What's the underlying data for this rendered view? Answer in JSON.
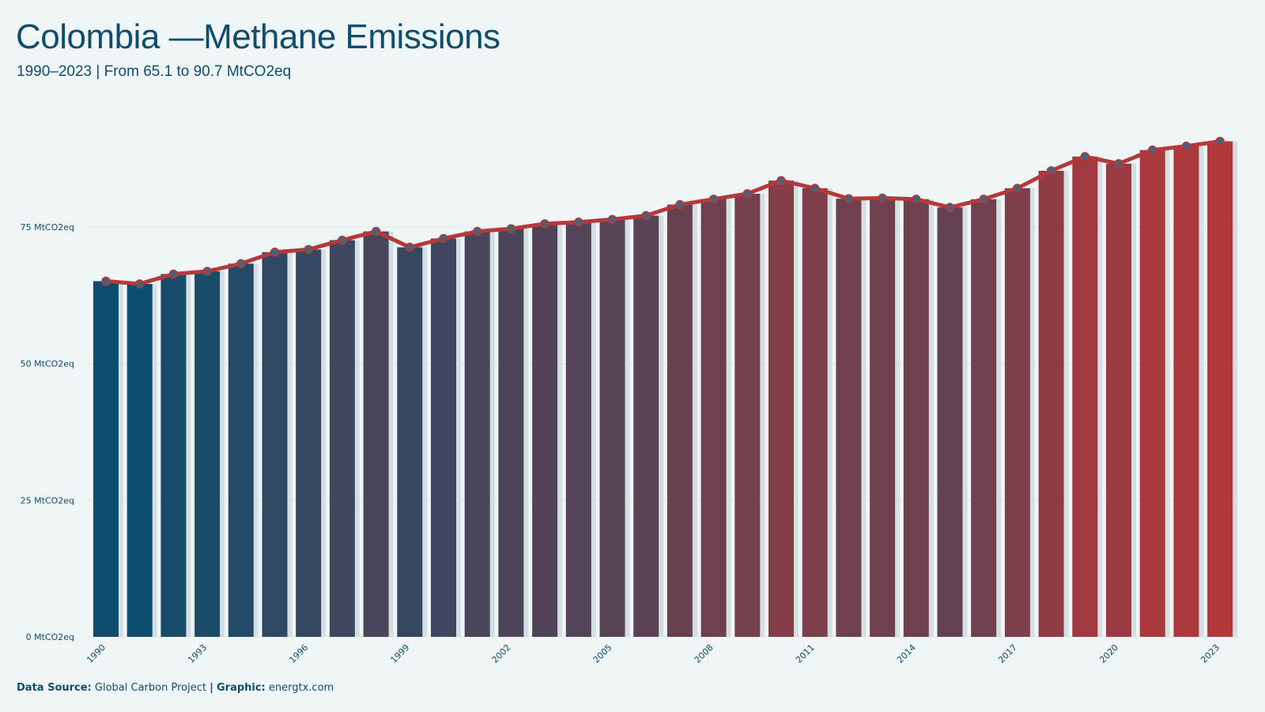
{
  "header": {
    "title": "Colombia —Methane Emissions",
    "subtitle": "1990–2023 | From 65.1 to 90.7 MtCO2eq"
  },
  "footer": {
    "source_label": "Data Source:",
    "source_value": "Global Carbon Project",
    "separator": "|",
    "graphic_label": "Graphic:",
    "graphic_value": "energtx.com"
  },
  "colors": {
    "background": "#f0f6f6",
    "bar_start": "#0b4d6e",
    "bar_end": "#b3383a",
    "line": "#b5393b",
    "marker_fill": "#4e5f78",
    "text": "#0f4d6e",
    "grid": "#dfe5e6"
  },
  "chart_data": {
    "type": "bar",
    "ylabel": "",
    "xlabel": "",
    "ylim": [
      0,
      100
    ],
    "y_ticks": [
      0,
      25,
      50,
      75
    ],
    "y_tick_labels": [
      "0 MtCO2eq",
      "25 MtCO2eq",
      "50 MtCO2eq",
      "75 MtCO2eq"
    ],
    "x_tick_labels": [
      "1990",
      "1993",
      "1996",
      "1999",
      "2002",
      "2005",
      "2008",
      "2011",
      "2014",
      "2017",
      "2020",
      "2023"
    ],
    "categories": [
      "1990",
      "1991",
      "1992",
      "1993",
      "1994",
      "1995",
      "1996",
      "1997",
      "1998",
      "1999",
      "2000",
      "2001",
      "2002",
      "2003",
      "2004",
      "2005",
      "2006",
      "2007",
      "2008",
      "2009",
      "2010",
      "2011",
      "2012",
      "2013",
      "2014",
      "2015",
      "2016",
      "2017",
      "2018",
      "2019",
      "2020",
      "2021",
      "2022",
      "2023"
    ],
    "values": [
      65.1,
      64.6,
      66.4,
      66.9,
      68.3,
      70.4,
      70.9,
      72.6,
      74.2,
      71.3,
      72.9,
      74.2,
      74.7,
      75.6,
      75.9,
      76.4,
      77.1,
      79.1,
      80.1,
      81.1,
      83.5,
      82.1,
      80.2,
      80.3,
      80.1,
      78.6,
      80.1,
      82.1,
      85.3,
      87.9,
      86.6,
      89.1,
      89.8,
      90.7
    ],
    "grid": true
  }
}
